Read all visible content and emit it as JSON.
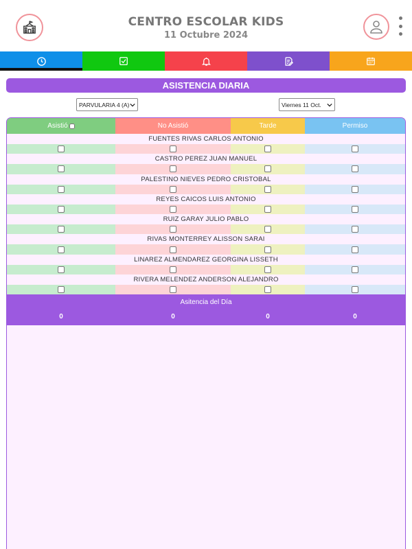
{
  "header": {
    "title": "CENTRO ESCOLAR KIDS",
    "date": "11 Octubre 2024",
    "left_icon": "school-icon",
    "right_icon": "user-icon"
  },
  "tabs": [
    {
      "icon": "clock-icon",
      "color": "#0f8fe8",
      "active": true
    },
    {
      "icon": "checkbox-icon",
      "color": "#10c810",
      "active": false
    },
    {
      "icon": "bell-icon",
      "color": "#f5424b",
      "active": false
    },
    {
      "icon": "report-icon",
      "color": "#7e50cc",
      "active": false
    },
    {
      "icon": "calendar-icon",
      "color": "#f8a51c",
      "active": false
    }
  ],
  "card": {
    "title": "ASISTENCIA DIARIA"
  },
  "filters": {
    "grade_value": "PARVULARIA 4 (A)",
    "date_value": "Viernes 11 Oct."
  },
  "table": {
    "headers": [
      "Asistió",
      "No Asistió",
      "Tarde",
      "Permiso"
    ],
    "header_colors": [
      "#7fcd80",
      "#ff8f86",
      "#f7c94a",
      "#79c3f2"
    ],
    "cell_colors": [
      "#c6ecce",
      "#fdd4d7",
      "#eef1c0",
      "#d8e8f8"
    ],
    "students": [
      "FUENTES RIVAS CARLOS ANTONIO",
      "CASTRO PEREZ JUAN MANUEL",
      "PALESTINO NIEVES PEDRO CRISTOBAL",
      "REYES CAICOS LUIS ANTONIO",
      "RUIZ GARAY JULIO PABLO",
      "RIVAS MONTERREY ALISSON SARAI",
      "LINAREZ ALMENDAREZ GEORGINA LISSETH",
      "RIVERA MELENDEZ ANDERSON ALEJANDRO"
    ]
  },
  "summary": {
    "title": "Asitencia del Día",
    "values": [
      "0",
      "0",
      "0",
      "0"
    ]
  },
  "colors": {
    "accent": "#9c59e0",
    "panel_bg": "#fdf0ff",
    "icon_ring": "#f0939a"
  }
}
